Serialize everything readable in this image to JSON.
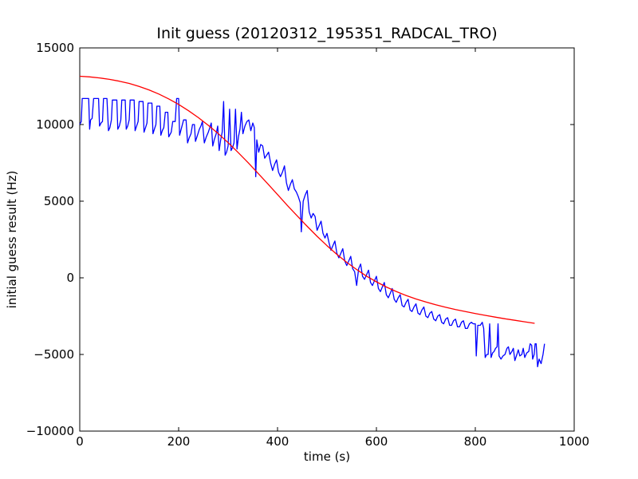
{
  "chart_data": {
    "type": "line",
    "title": "Init guess (20120312_195351_RADCAL_TRO)",
    "xlabel": "time (s)",
    "ylabel": "initial guess result (Hz)",
    "xlim": [
      0,
      1000
    ],
    "ylim": [
      -10000,
      15000
    ],
    "xticks": [
      "0",
      "200",
      "400",
      "600",
      "800",
      "1000"
    ],
    "yticks": [
      "−10000",
      "−5000",
      "0",
      "5000",
      "10000",
      "15000"
    ],
    "grid": false,
    "legend": "none",
    "series": [
      {
        "color": "#0000ff",
        "points": [
          [
            0,
            10000
          ],
          [
            3,
            10200
          ],
          [
            5,
            11700
          ],
          [
            10,
            11700
          ],
          [
            15,
            11700
          ],
          [
            18,
            11700
          ],
          [
            20,
            9700
          ],
          [
            22,
            10300
          ],
          [
            25,
            10400
          ],
          [
            28,
            11700
          ],
          [
            35,
            11700
          ],
          [
            38,
            11700
          ],
          [
            40,
            9900
          ],
          [
            43,
            10100
          ],
          [
            46,
            10200
          ],
          [
            48,
            11700
          ],
          [
            55,
            11700
          ],
          [
            58,
            9600
          ],
          [
            61,
            9800
          ],
          [
            64,
            10300
          ],
          [
            66,
            11600
          ],
          [
            75,
            11600
          ],
          [
            77,
            9700
          ],
          [
            80,
            9900
          ],
          [
            83,
            10300
          ],
          [
            85,
            11600
          ],
          [
            92,
            11600
          ],
          [
            94,
            9700
          ],
          [
            97,
            9900
          ],
          [
            100,
            10300
          ],
          [
            102,
            11600
          ],
          [
            110,
            11600
          ],
          [
            112,
            9600
          ],
          [
            115,
            9900
          ],
          [
            118,
            10200
          ],
          [
            120,
            11500
          ],
          [
            128,
            11500
          ],
          [
            130,
            9500
          ],
          [
            133,
            9800
          ],
          [
            136,
            10100
          ],
          [
            138,
            11400
          ],
          [
            146,
            11400
          ],
          [
            148,
            9400
          ],
          [
            151,
            9700
          ],
          [
            154,
            10000
          ],
          [
            156,
            11200
          ],
          [
            162,
            11200
          ],
          [
            164,
            9300
          ],
          [
            167,
            9600
          ],
          [
            170,
            9800
          ],
          [
            173,
            10800
          ],
          [
            178,
            10800
          ],
          [
            180,
            9200
          ],
          [
            185,
            9500
          ],
          [
            188,
            10200
          ],
          [
            193,
            10200
          ],
          [
            196,
            11700
          ],
          [
            200,
            11700
          ],
          [
            202,
            9300
          ],
          [
            206,
            9800
          ],
          [
            210,
            10300
          ],
          [
            215,
            10300
          ],
          [
            218,
            8800
          ],
          [
            221,
            9100
          ],
          [
            225,
            9400
          ],
          [
            228,
            10000
          ],
          [
            232,
            10000
          ],
          [
            234,
            8900
          ],
          [
            238,
            9300
          ],
          [
            242,
            9700
          ],
          [
            245,
            9900
          ],
          [
            248,
            10200
          ],
          [
            252,
            8800
          ],
          [
            256,
            9200
          ],
          [
            260,
            9500
          ],
          [
            263,
            9800
          ],
          [
            266,
            10100
          ],
          [
            269,
            8600
          ],
          [
            272,
            9000
          ],
          [
            276,
            9400
          ],
          [
            279,
            9900
          ],
          [
            282,
            8300
          ],
          [
            285,
            9000
          ],
          [
            288,
            9500
          ],
          [
            291,
            11500
          ],
          [
            294,
            8000
          ],
          [
            297,
            8200
          ],
          [
            300,
            8600
          ],
          [
            303,
            11000
          ],
          [
            306,
            8300
          ],
          [
            309,
            8500
          ],
          [
            312,
            8800
          ],
          [
            315,
            11000
          ],
          [
            318,
            8400
          ],
          [
            321,
            9200
          ],
          [
            324,
            9700
          ],
          [
            327,
            10800
          ],
          [
            330,
            9400
          ],
          [
            334,
            9900
          ],
          [
            338,
            10200
          ],
          [
            342,
            10300
          ],
          [
            346,
            9600
          ],
          [
            350,
            10100
          ],
          [
            353,
            9800
          ],
          [
            356,
            6600
          ],
          [
            358,
            9000
          ],
          [
            362,
            8200
          ],
          [
            366,
            8700
          ],
          [
            370,
            8600
          ],
          [
            374,
            7800
          ],
          [
            378,
            8000
          ],
          [
            382,
            8200
          ],
          [
            386,
            7500
          ],
          [
            390,
            7000
          ],
          [
            394,
            7400
          ],
          [
            398,
            7700
          ],
          [
            402,
            6900
          ],
          [
            406,
            6600
          ],
          [
            410,
            6900
          ],
          [
            414,
            7300
          ],
          [
            418,
            6200
          ],
          [
            422,
            5700
          ],
          [
            426,
            6100
          ],
          [
            430,
            6400
          ],
          [
            434,
            5800
          ],
          [
            438,
            5600
          ],
          [
            442,
            5300
          ],
          [
            446,
            4900
          ],
          [
            448,
            3000
          ],
          [
            452,
            5000
          ],
          [
            456,
            5400
          ],
          [
            460,
            5700
          ],
          [
            464,
            4300
          ],
          [
            468,
            3900
          ],
          [
            472,
            4200
          ],
          [
            476,
            4000
          ],
          [
            480,
            3100
          ],
          [
            484,
            3400
          ],
          [
            488,
            3700
          ],
          [
            492,
            2900
          ],
          [
            496,
            2600
          ],
          [
            500,
            2900
          ],
          [
            504,
            2300
          ],
          [
            508,
            1800
          ],
          [
            512,
            2100
          ],
          [
            516,
            2400
          ],
          [
            520,
            1600
          ],
          [
            524,
            1300
          ],
          [
            528,
            1600
          ],
          [
            532,
            1900
          ],
          [
            536,
            1100
          ],
          [
            540,
            800
          ],
          [
            544,
            1100
          ],
          [
            548,
            1400
          ],
          [
            552,
            600
          ],
          [
            556,
            400
          ],
          [
            560,
            -500
          ],
          [
            564,
            600
          ],
          [
            568,
            900
          ],
          [
            572,
            100
          ],
          [
            576,
            -100
          ],
          [
            580,
            200
          ],
          [
            584,
            500
          ],
          [
            588,
            -300
          ],
          [
            592,
            -500
          ],
          [
            596,
            -200
          ],
          [
            600,
            100
          ],
          [
            604,
            -700
          ],
          [
            608,
            -900
          ],
          [
            612,
            -600
          ],
          [
            616,
            -300
          ],
          [
            620,
            -1100
          ],
          [
            624,
            -1300
          ],
          [
            628,
            -1000
          ],
          [
            632,
            -700
          ],
          [
            636,
            -1400
          ],
          [
            640,
            -1600
          ],
          [
            644,
            -1300
          ],
          [
            648,
            -1100
          ],
          [
            652,
            -1800
          ],
          [
            656,
            -1900
          ],
          [
            660,
            -1600
          ],
          [
            664,
            -1400
          ],
          [
            668,
            -2100
          ],
          [
            672,
            -2200
          ],
          [
            676,
            -1900
          ],
          [
            680,
            -1700
          ],
          [
            684,
            -2300
          ],
          [
            688,
            -2400
          ],
          [
            692,
            -2100
          ],
          [
            696,
            -1900
          ],
          [
            700,
            -2500
          ],
          [
            704,
            -2600
          ],
          [
            708,
            -2300
          ],
          [
            712,
            -2200
          ],
          [
            716,
            -2700
          ],
          [
            720,
            -2800
          ],
          [
            724,
            -2500
          ],
          [
            728,
            -2400
          ],
          [
            732,
            -2900
          ],
          [
            736,
            -3000
          ],
          [
            740,
            -2700
          ],
          [
            744,
            -2600
          ],
          [
            748,
            -3100
          ],
          [
            752,
            -3100
          ],
          [
            756,
            -2800
          ],
          [
            760,
            -2700
          ],
          [
            764,
            -3200
          ],
          [
            768,
            -3200
          ],
          [
            772,
            -2900
          ],
          [
            776,
            -2800
          ],
          [
            780,
            -3300
          ],
          [
            784,
            -3300
          ],
          [
            788,
            -3000
          ],
          [
            792,
            -2900
          ],
          [
            796,
            -3000
          ],
          [
            800,
            -3000
          ],
          [
            802,
            -5100
          ],
          [
            805,
            -3100
          ],
          [
            810,
            -3100
          ],
          [
            814,
            -2900
          ],
          [
            817,
            -3300
          ],
          [
            820,
            -5200
          ],
          [
            823,
            -5000
          ],
          [
            826,
            -5000
          ],
          [
            829,
            -3000
          ],
          [
            832,
            -5200
          ],
          [
            835,
            -4900
          ],
          [
            838,
            -4800
          ],
          [
            841,
            -4600
          ],
          [
            844,
            -4500
          ],
          [
            846,
            -3000
          ],
          [
            848,
            -5100
          ],
          [
            852,
            -5300
          ],
          [
            856,
            -5100
          ],
          [
            860,
            -5000
          ],
          [
            864,
            -4600
          ],
          [
            867,
            -4500
          ],
          [
            870,
            -5000
          ],
          [
            874,
            -4800
          ],
          [
            877,
            -4600
          ],
          [
            880,
            -5400
          ],
          [
            884,
            -5000
          ],
          [
            887,
            -4700
          ],
          [
            890,
            -5100
          ],
          [
            894,
            -5000
          ],
          [
            897,
            -4600
          ],
          [
            900,
            -5200
          ],
          [
            904,
            -4900
          ],
          [
            908,
            -4800
          ],
          [
            911,
            -4300
          ],
          [
            914,
            -4400
          ],
          [
            916,
            -5300
          ],
          [
            919,
            -5000
          ],
          [
            921,
            -4300
          ],
          [
            923,
            -4300
          ],
          [
            926,
            -5800
          ],
          [
            929,
            -5300
          ],
          [
            933,
            -5600
          ],
          [
            937,
            -5000
          ],
          [
            940,
            -4300
          ]
        ]
      },
      {
        "color": "#ff0000",
        "points": [
          [
            0,
            13150
          ],
          [
            20,
            13110
          ],
          [
            40,
            13040
          ],
          [
            60,
            12950
          ],
          [
            80,
            12830
          ],
          [
            100,
            12680
          ],
          [
            120,
            12490
          ],
          [
            140,
            12260
          ],
          [
            160,
            11990
          ],
          [
            180,
            11670
          ],
          [
            200,
            11310
          ],
          [
            220,
            10900
          ],
          [
            240,
            10450
          ],
          [
            260,
            9950
          ],
          [
            280,
            9410
          ],
          [
            300,
            8820
          ],
          [
            320,
            8190
          ],
          [
            340,
            7530
          ],
          [
            360,
            6840
          ],
          [
            380,
            6140
          ],
          [
            400,
            5430
          ],
          [
            420,
            4720
          ],
          [
            440,
            4030
          ],
          [
            460,
            3360
          ],
          [
            480,
            2710
          ],
          [
            500,
            2100
          ],
          [
            520,
            1530
          ],
          [
            540,
            1010
          ],
          [
            560,
            540
          ],
          [
            580,
            110
          ],
          [
            600,
            -260
          ],
          [
            620,
            -600
          ],
          [
            640,
            -890
          ],
          [
            660,
            -1150
          ],
          [
            680,
            -1380
          ],
          [
            700,
            -1580
          ],
          [
            720,
            -1760
          ],
          [
            740,
            -1920
          ],
          [
            760,
            -2070
          ],
          [
            780,
            -2200
          ],
          [
            800,
            -2330
          ],
          [
            820,
            -2450
          ],
          [
            840,
            -2560
          ],
          [
            860,
            -2670
          ],
          [
            880,
            -2770
          ],
          [
            900,
            -2870
          ],
          [
            920,
            -2970
          ]
        ]
      }
    ]
  }
}
